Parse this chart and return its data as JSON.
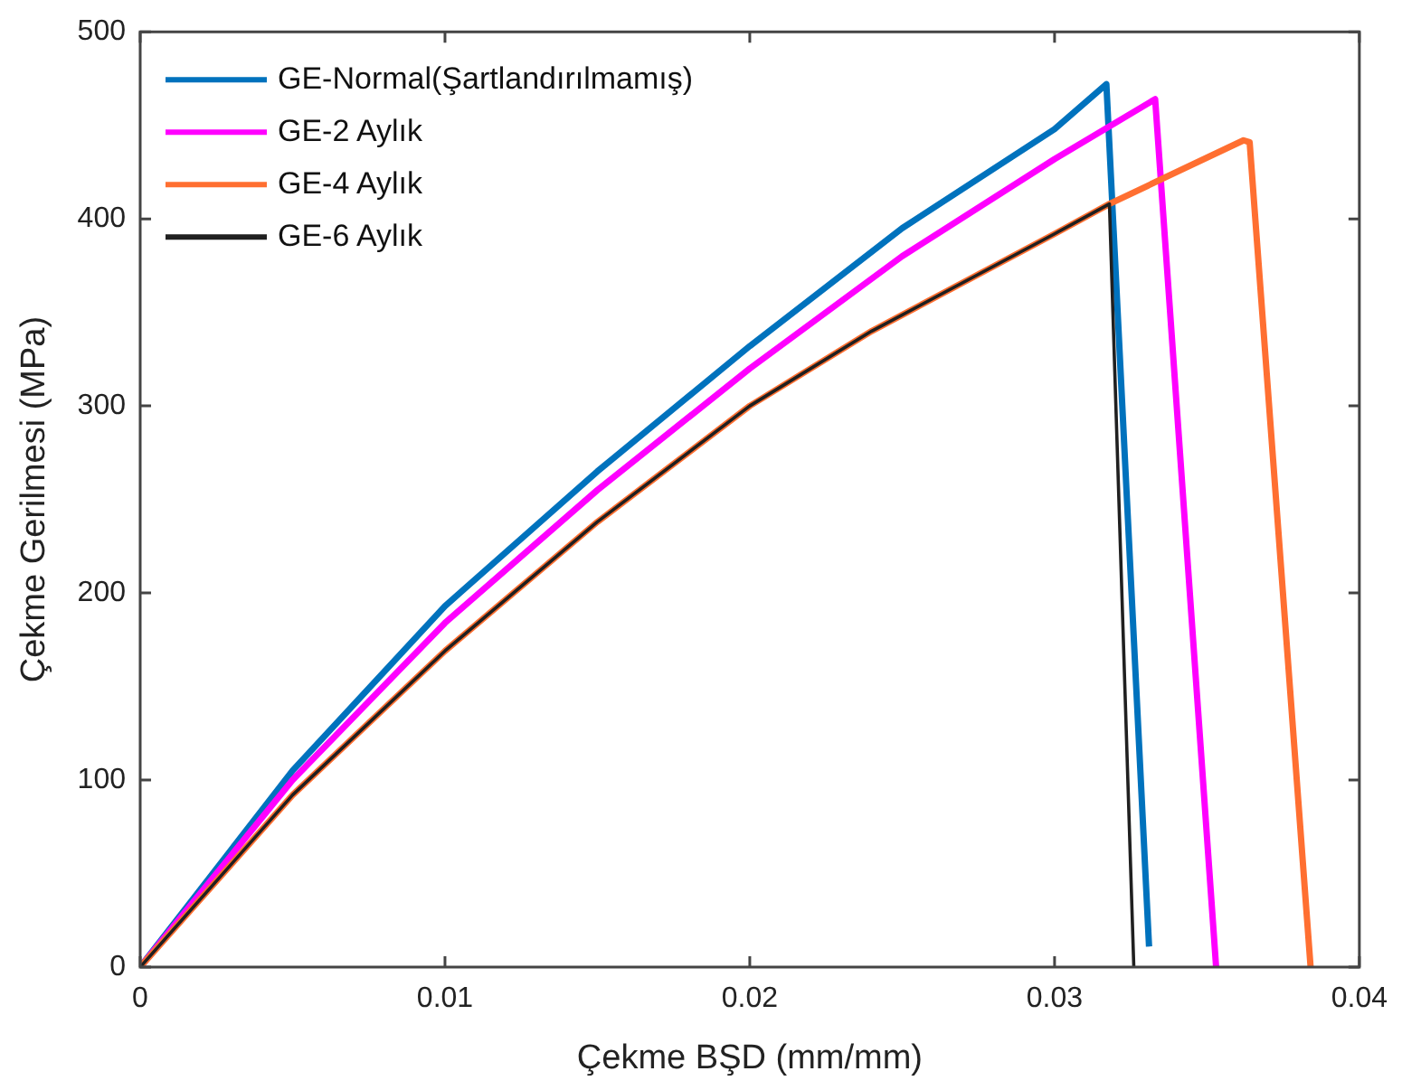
{
  "chart_data": {
    "type": "line",
    "xlabel": "Çekme BŞD (mm/mm)",
    "ylabel": "Çekme Gerilmesi (MPa)",
    "xlim": [
      0,
      0.04
    ],
    "ylim": [
      0,
      500
    ],
    "xticks": [
      0,
      0.01,
      0.02,
      0.03,
      0.04
    ],
    "yticks": [
      0,
      100,
      200,
      300,
      400,
      500
    ],
    "grid": false,
    "legend": "top left",
    "marker": "none",
    "line_style": "solid",
    "series": [
      {
        "name": "GE-Normal(Şartlandırılmamış)",
        "color": "#0072bd",
        "x": [
          0,
          0.005,
          0.01,
          0.015,
          0.02,
          0.025,
          0.03,
          0.0317,
          0.0331
        ],
        "values": [
          0,
          105,
          193,
          265,
          332,
          395,
          448,
          472,
          11
        ]
      },
      {
        "name": "GE-2 Aylık",
        "color": "#ff00ff",
        "x": [
          0,
          0.005,
          0.01,
          0.015,
          0.02,
          0.025,
          0.03,
          0.0333,
          0.0353
        ],
        "values": [
          0,
          100,
          184,
          255,
          320,
          380,
          432,
          464,
          0
        ]
      },
      {
        "name": "GE-4 Aylık",
        "color": "#ff6f31",
        "x": [
          0,
          0.005,
          0.01,
          0.015,
          0.02,
          0.024,
          0.03,
          0.0318,
          0.0362,
          0.0364,
          0.0384
        ],
        "values": [
          0,
          92,
          169,
          238,
          300,
          340,
          392,
          408,
          442,
          441,
          0
        ]
      },
      {
        "name": "GE-6 Aylık",
        "color": "#202020",
        "x": [
          0,
          0.005,
          0.01,
          0.015,
          0.02,
          0.024,
          0.03,
          0.0318,
          0.0326
        ],
        "values": [
          0,
          92,
          169,
          238,
          300,
          340,
          392,
          408,
          0
        ]
      }
    ]
  }
}
